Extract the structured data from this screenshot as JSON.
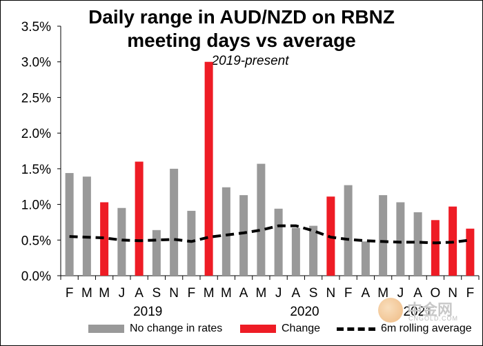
{
  "chart_data": {
    "type": "bar",
    "title_lines": [
      "Daily range in AUD/NZD on RBNZ",
      "meeting days vs average"
    ],
    "subtitle": "2019-present",
    "yticks": [
      "0.0%",
      "0.5%",
      "1.0%",
      "1.5%",
      "2.0%",
      "2.5%",
      "3.0%",
      "3.5%"
    ],
    "ylim": [
      0,
      3.5
    ],
    "categories": [
      "F",
      "M",
      "M",
      "J",
      "A",
      "S",
      "N",
      "F",
      "M",
      "M",
      "A",
      "M",
      "J",
      "A",
      "S",
      "N",
      "F",
      "A",
      "M",
      "J",
      "A",
      "O",
      "N",
      "F"
    ],
    "year_labels": [
      "2019",
      "2020",
      "2021"
    ],
    "series": [
      {
        "name": "No change in rates",
        "color": "#999999",
        "values": [
          1.44,
          1.39,
          null,
          0.95,
          null,
          0.64,
          1.5,
          0.91,
          null,
          1.24,
          1.13,
          1.57,
          0.94,
          0.67,
          0.7,
          null,
          1.27,
          0.48,
          1.13,
          1.03,
          0.89,
          null,
          null,
          null
        ]
      },
      {
        "name": "Change",
        "color": "#ee1c25",
        "values": [
          null,
          null,
          1.03,
          null,
          1.6,
          null,
          null,
          null,
          3.0,
          null,
          null,
          null,
          null,
          null,
          null,
          1.11,
          null,
          null,
          null,
          null,
          null,
          0.78,
          0.97,
          0.66
        ]
      },
      {
        "name": "6m rolling average",
        "color": "#000000",
        "style": "dashed",
        "values": [
          0.55,
          0.54,
          0.53,
          0.5,
          0.49,
          0.5,
          0.51,
          0.48,
          0.54,
          0.57,
          0.6,
          0.64,
          0.7,
          0.7,
          0.63,
          0.54,
          0.51,
          0.49,
          0.48,
          0.47,
          0.47,
          0.46,
          0.47,
          0.5
        ]
      }
    ]
  },
  "watermark": {
    "cn": "中金网",
    "en": "CNGOLD.COM"
  }
}
